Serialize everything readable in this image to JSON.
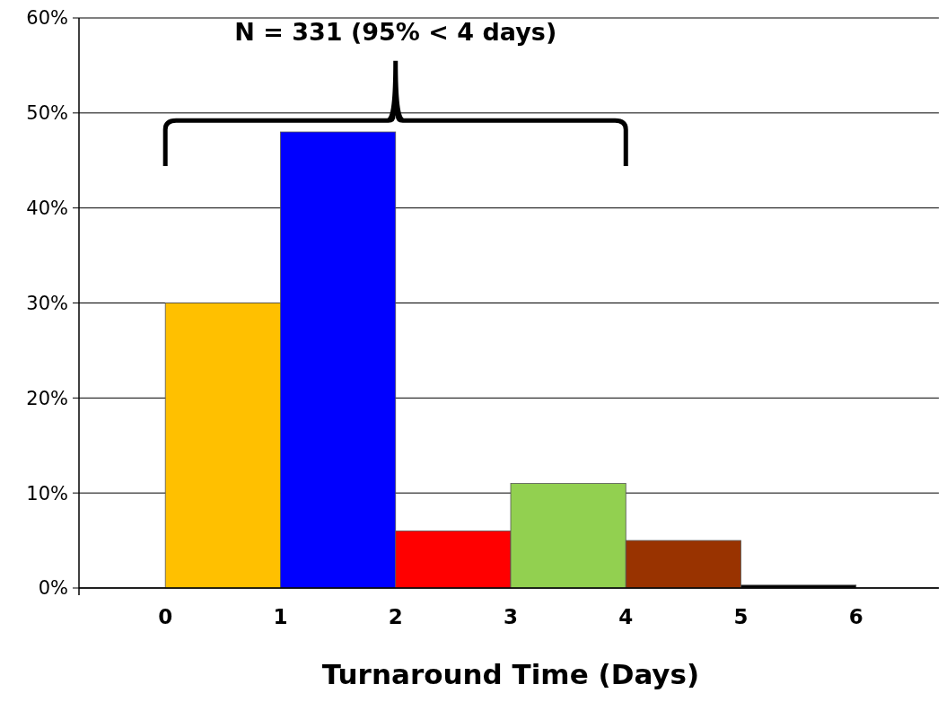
{
  "chart_data": {
    "type": "histogram",
    "xlabel": "Turnaround Time (Days)",
    "bins": [
      0,
      1,
      2,
      3,
      4,
      5,
      6
    ],
    "values": [
      30,
      48,
      6,
      11,
      5,
      0.3
    ],
    "colors": [
      "#ffc000",
      "#0000ff",
      "#ff0000",
      "#92d050",
      "#993300",
      "#000000"
    ],
    "xlim": [
      -0.75,
      6.75
    ],
    "xticks": [
      0,
      1,
      2,
      3,
      4,
      5,
      6
    ],
    "ylim": [
      0,
      60
    ],
    "yticks": [
      {
        "value": 0,
        "label": "0%"
      },
      {
        "value": 10,
        "label": "10%"
      },
      {
        "value": 20,
        "label": "20%"
      },
      {
        "value": 30,
        "label": "30%"
      },
      {
        "value": 40,
        "label": "40%"
      },
      {
        "value": 50,
        "label": "50%"
      },
      {
        "value": 60,
        "label": "60%"
      }
    ],
    "grid": "y",
    "annotations": [
      "N = 331 (95% < 4 days)"
    ]
  }
}
